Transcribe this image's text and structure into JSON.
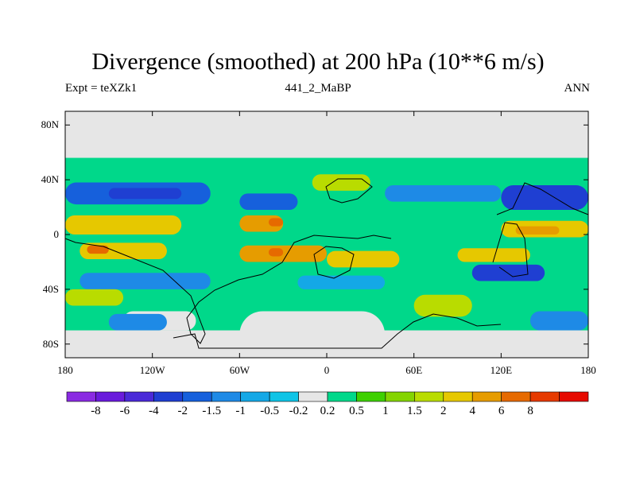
{
  "chart_data": {
    "type": "heatmap",
    "title": "Divergence (smoothed) at 200 hPa (10**6 m/s)",
    "subtitle_left": "Expt = teXZk1",
    "subtitle_center": "441_2_MaBP",
    "subtitle_right": "ANN",
    "x_ticks": [
      "180",
      "120W",
      "60W",
      "0",
      "60E",
      "120E",
      "180"
    ],
    "x_tick_values": [
      -180,
      -120,
      -60,
      0,
      60,
      120,
      180
    ],
    "y_ticks": [
      "80N",
      "40N",
      "0",
      "40S",
      "80S"
    ],
    "y_tick_values": [
      80,
      40,
      0,
      -40,
      -80
    ],
    "xlim": [
      -180,
      180
    ],
    "ylim": [
      -90,
      90
    ],
    "colorbar": {
      "colors": [
        "#8a2be2",
        "#6a1bdc",
        "#4a2ad8",
        "#1f3fd2",
        "#1660dc",
        "#1e8ae6",
        "#14a8e6",
        "#0fc4e6",
        "#e6e6e6",
        "#00d88a",
        "#3ed000",
        "#84d400",
        "#b9dc00",
        "#e6c800",
        "#e69c00",
        "#e66a00",
        "#e63a00",
        "#e60a00"
      ],
      "labels": [
        "-8",
        "-6",
        "-4",
        "-2",
        "-1.5",
        "-1",
        "-0.5",
        "-0.2",
        "0.2",
        "0.5",
        "1",
        "1.5",
        "2",
        "4",
        "6",
        "8"
      ]
    },
    "regions": [
      {
        "color": "#e6e6e6",
        "x": [
          -180,
          180
        ],
        "y": [
          -90,
          90
        ]
      },
      {
        "color": "#00d88a",
        "x": [
          -180,
          180
        ],
        "y": [
          -70,
          56
        ]
      },
      {
        "color": "#1660dc",
        "x": [
          -180,
          -80
        ],
        "y": [
          22,
          38
        ]
      },
      {
        "color": "#1f3fd2",
        "x": [
          -150,
          -100
        ],
        "y": [
          26,
          34
        ]
      },
      {
        "color": "#1660dc",
        "x": [
          -60,
          -20
        ],
        "y": [
          18,
          30
        ]
      },
      {
        "color": "#1e8ae6",
        "x": [
          40,
          120
        ],
        "y": [
          24,
          36
        ]
      },
      {
        "color": "#1f3fd2",
        "x": [
          120,
          180
        ],
        "y": [
          18,
          36
        ]
      },
      {
        "color": "#e6c800",
        "x": [
          -180,
          -100
        ],
        "y": [
          0,
          14
        ]
      },
      {
        "color": "#e69c00",
        "x": [
          -60,
          -30
        ],
        "y": [
          2,
          14
        ]
      },
      {
        "color": "#e66a00",
        "x": [
          -40,
          -30
        ],
        "y": [
          6,
          12
        ]
      },
      {
        "color": "#b9dc00",
        "x": [
          -10,
          30
        ],
        "y": [
          32,
          44
        ]
      },
      {
        "color": "#e6c800",
        "x": [
          120,
          180
        ],
        "y": [
          -2,
          10
        ]
      },
      {
        "color": "#e69c00",
        "x": [
          130,
          160
        ],
        "y": [
          0,
          6
        ]
      },
      {
        "color": "#e6c800",
        "x": [
          -170,
          -110
        ],
        "y": [
          -18,
          -6
        ]
      },
      {
        "color": "#e66a00",
        "x": [
          -165,
          -150
        ],
        "y": [
          -14,
          -8
        ]
      },
      {
        "color": "#e69c00",
        "x": [
          -60,
          0
        ],
        "y": [
          -20,
          -8
        ]
      },
      {
        "color": "#e66a00",
        "x": [
          -40,
          -30
        ],
        "y": [
          -16,
          -10
        ]
      },
      {
        "color": "#e6c800",
        "x": [
          0,
          50
        ],
        "y": [
          -24,
          -12
        ]
      },
      {
        "color": "#e6c800",
        "x": [
          90,
          140
        ],
        "y": [
          -20,
          -10
        ]
      },
      {
        "color": "#1f3fd2",
        "x": [
          100,
          150
        ],
        "y": [
          -34,
          -22
        ]
      },
      {
        "color": "#1e8ae6",
        "x": [
          -170,
          -80
        ],
        "y": [
          -40,
          -28
        ]
      },
      {
        "color": "#14a8e6",
        "x": [
          -20,
          40
        ],
        "y": [
          -40,
          -30
        ]
      },
      {
        "color": "#e6e6e6",
        "x": [
          -140,
          -90
        ],
        "y": [
          -70,
          -56
        ]
      },
      {
        "color": "#e6e6e6",
        "x": [
          -60,
          40
        ],
        "y": [
          -90,
          -56
        ]
      },
      {
        "color": "#1e8ae6",
        "x": [
          -150,
          -110
        ],
        "y": [
          -70,
          -58
        ]
      },
      {
        "color": "#1e8ae6",
        "x": [
          140,
          180
        ],
        "y": [
          -70,
          -56
        ]
      },
      {
        "color": "#b9dc00",
        "x": [
          -180,
          -140
        ],
        "y": [
          -52,
          -40
        ]
      },
      {
        "color": "#b9dc00",
        "x": [
          60,
          100
        ],
        "y": [
          -60,
          -44
        ]
      }
    ]
  }
}
